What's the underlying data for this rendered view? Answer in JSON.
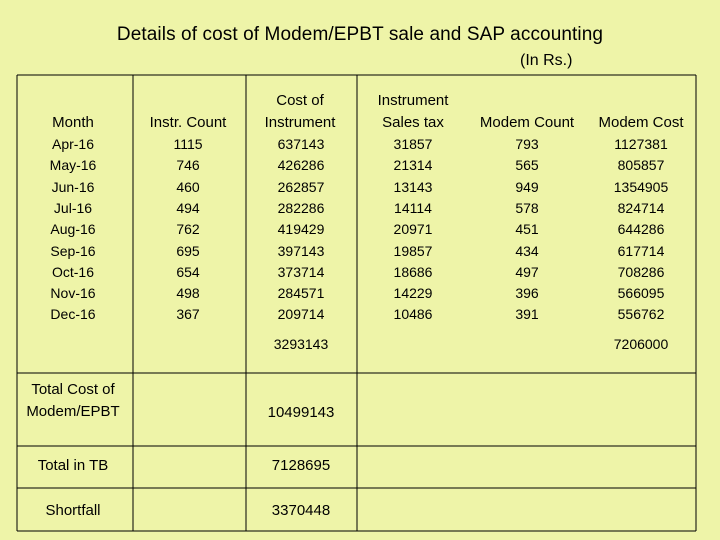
{
  "title": "Details of cost of Modem/EPBT sale and SAP accounting",
  "unit": "(In Rs.)",
  "headers": {
    "month": "Month",
    "instr_count": "Instr. Count",
    "cost_instrument_1": "Cost of",
    "cost_instrument_2": "Instrument",
    "sales_tax_1": "Instrument",
    "sales_tax_2": "Sales tax",
    "modem_count": "Modem Count",
    "modem_cost": "Modem Cost"
  },
  "rows": [
    {
      "month": "Apr-16",
      "instr_count": "1115",
      "cost": "637143",
      "tax": "31857",
      "modem_count": "793",
      "modem_cost": "1127381"
    },
    {
      "month": "May-16",
      "instr_count": "746",
      "cost": "426286",
      "tax": "21314",
      "modem_count": "565",
      "modem_cost": "805857"
    },
    {
      "month": "Jun-16",
      "instr_count": "460",
      "cost": "262857",
      "tax": "13143",
      "modem_count": "949",
      "modem_cost": "1354905"
    },
    {
      "month": "Jul-16",
      "instr_count": "494",
      "cost": "282286",
      "tax": "14114",
      "modem_count": "578",
      "modem_cost": "824714"
    },
    {
      "month": "Aug-16",
      "instr_count": "762",
      "cost": "419429",
      "tax": "20971",
      "modem_count": "451",
      "modem_cost": "644286"
    },
    {
      "month": "Sep-16",
      "instr_count": "695",
      "cost": "397143",
      "tax": "19857",
      "modem_count": "434",
      "modem_cost": "617714"
    },
    {
      "month": "Oct-16",
      "instr_count": "654",
      "cost": "373714",
      "tax": "18686",
      "modem_count": "497",
      "modem_cost": "708286"
    },
    {
      "month": "Nov-16",
      "instr_count": "498",
      "cost": "284571",
      "tax": "14229",
      "modem_count": "396",
      "modem_cost": "566095"
    },
    {
      "month": "Dec-16",
      "instr_count": "367",
      "cost": "209714",
      "tax": "10486",
      "modem_count": "391",
      "modem_cost": "556762"
    }
  ],
  "totals": {
    "cost_instrument": "3293143",
    "modem_cost": "7206000"
  },
  "summary": {
    "total_cost_label_1": "Total Cost of",
    "total_cost_label_2": "Modem/EPBT",
    "total_cost_value": "10499143",
    "total_tb_label": "Total in TB",
    "total_tb_value": "7128695",
    "shortfall_label": "Shortfall",
    "shortfall_value": "3370448"
  }
}
